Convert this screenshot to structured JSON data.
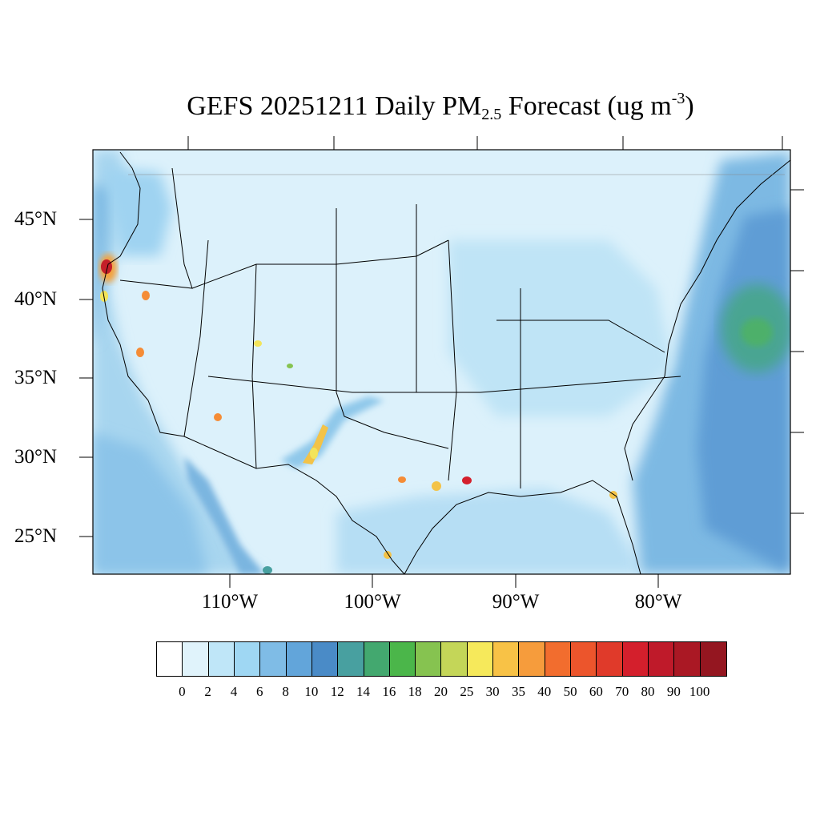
{
  "title": {
    "main": "GEFS 20251211 Daily PM",
    "sub": "2.5",
    "after": " Forecast (ug m",
    "sup": "-3",
    "close": ")"
  },
  "lat_labels": [
    "45°N",
    "40°N",
    "35°N",
    "30°N",
    "25°N"
  ],
  "lon_labels": [
    "110°W",
    "100°W",
    "90°W",
    "80°W"
  ],
  "colorbar": {
    "colors": [
      "#ffffff",
      "#e0f3fb",
      "#bfe6f8",
      "#9fd7f3",
      "#7fbce6",
      "#62a5da",
      "#4a8bc7",
      "#48a0a0",
      "#43a86f",
      "#4bb64a",
      "#86c350",
      "#c4d658",
      "#f6e95b",
      "#f8c246",
      "#f69c3c",
      "#f26d2e",
      "#ec552c",
      "#e03a2a",
      "#d41f2c",
      "#bf1a2a",
      "#aa1824",
      "#941620"
    ],
    "labels": [
      "0",
      "2",
      "4",
      "6",
      "8",
      "10",
      "12",
      "14",
      "16",
      "18",
      "20",
      "25",
      "30",
      "35",
      "40",
      "50",
      "60",
      "70",
      "80",
      "90",
      "100"
    ]
  },
  "map_colors": {
    "background": "#daf0fb",
    "ocean": "#7fbce6",
    "deep_ocean": "#5f9ed6",
    "light": "#bfe4f6",
    "green": "#4aa87a",
    "hot_red": "#c41f28",
    "hot_orange": "#f58c36",
    "hot_yellow": "#f3e45a"
  }
}
